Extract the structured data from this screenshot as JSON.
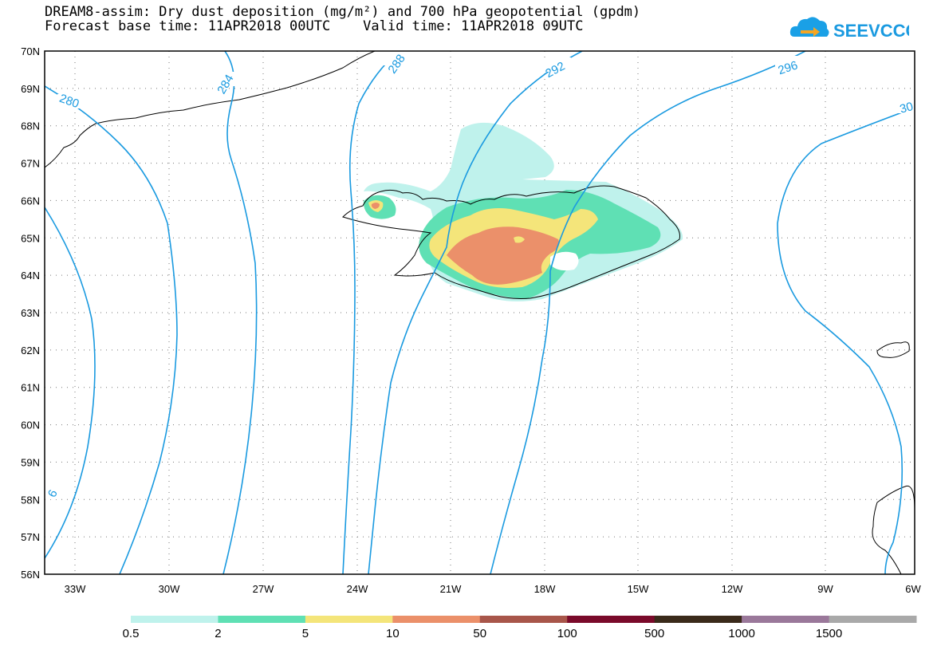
{
  "header": {
    "title_line1": "DREAM8-assim: Dry dust deposition (mg/m²) and 700 hPa geopotential (gpdm)",
    "title_line2": "Forecast base time: 11APR2018 00UTC    Valid time: 11APR2018 09UTC",
    "logo_text": "SEEVCCC"
  },
  "map": {
    "lat_labels": [
      "70N",
      "69N",
      "68N",
      "67N",
      "66N",
      "65N",
      "64N",
      "63N",
      "62N",
      "61N",
      "60N",
      "59N",
      "58N",
      "57N",
      "56N"
    ],
    "lon_labels": [
      "33W",
      "30W",
      "27W",
      "24W",
      "21W",
      "18W",
      "15W",
      "12W",
      "9W",
      "6W"
    ],
    "contour_labels": [
      "280",
      "284",
      "288",
      "292",
      "296",
      "30",
      "6"
    ],
    "contour_color": "#1a9ae0"
  },
  "legend": {
    "values": [
      "0.5",
      "2",
      "5",
      "10",
      "50",
      "100",
      "500",
      "1000",
      "1500"
    ],
    "colors": [
      "#bff2ec",
      "#5fe0b4",
      "#f4e57a",
      "#eb906a",
      "#a8564a",
      "#7a0a2a",
      "#3a2a1a",
      "#9a789a",
      "#a9a9a9"
    ]
  }
}
